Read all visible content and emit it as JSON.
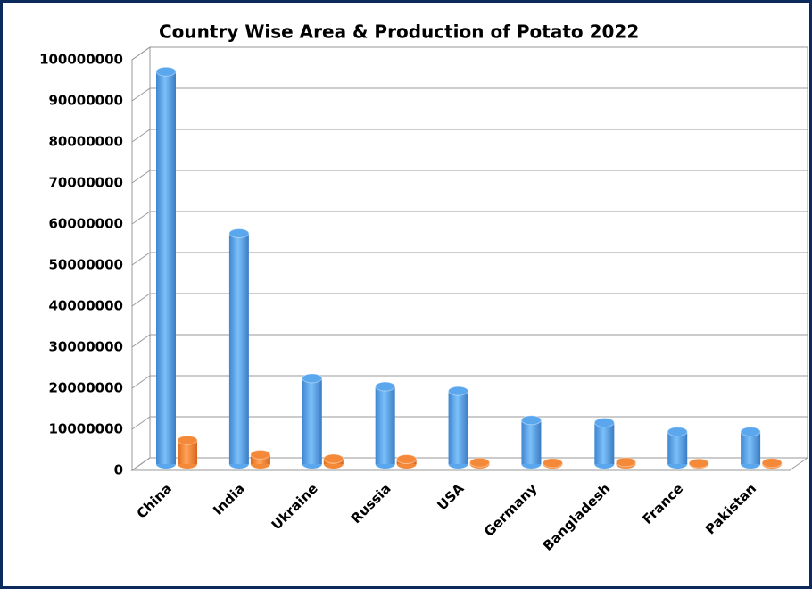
{
  "chart_data": {
    "type": "bar3d",
    "title": "Country Wise Area & Production of Potato 2022",
    "categories": [
      "China",
      "India",
      "Ukraine",
      "Russia",
      "USA",
      "Germany",
      "Bangladesh",
      "France",
      "Pakistan"
    ],
    "series": [
      {
        "color": "#5aa7ee",
        "values": [
          95600000,
          56200000,
          20900000,
          18900000,
          17800000,
          10700000,
          10100000,
          7900000,
          7900000
        ]
      },
      {
        "color": "#f5893a",
        "values": [
          5800000,
          2300000,
          1300000,
          1200000,
          370000,
          260000,
          470000,
          200000,
          300000
        ]
      }
    ],
    "ylim": [
      0,
      100000000
    ],
    "yticks": [
      0,
      10000000,
      20000000,
      30000000,
      40000000,
      50000000,
      60000000,
      70000000,
      80000000,
      90000000,
      100000000
    ],
    "grid": true
  }
}
